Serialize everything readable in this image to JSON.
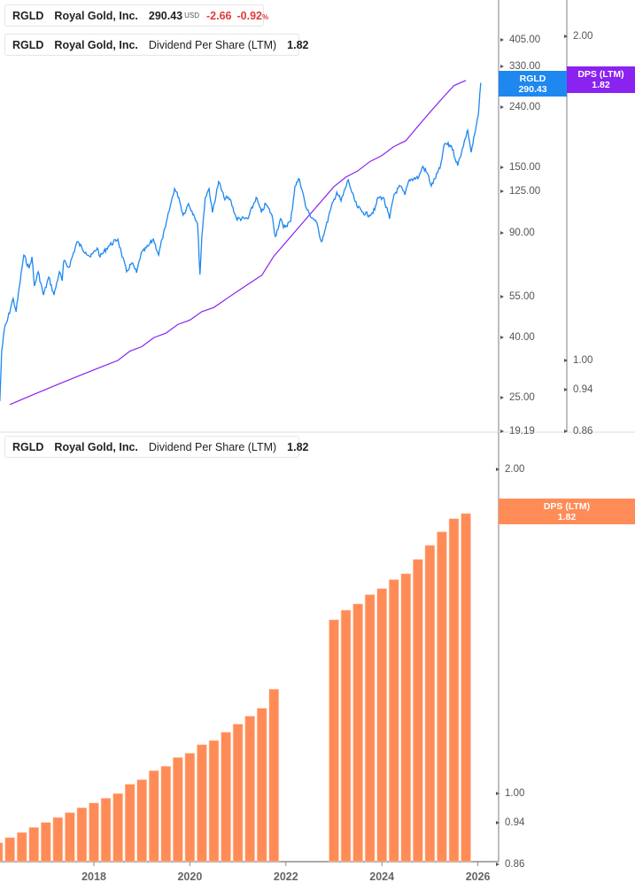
{
  "colors": {
    "price": "#1e88f0",
    "dps_line": "#8a22f0",
    "dps_bar": "#ff8c57",
    "axis": "#aaaaaa"
  },
  "legend_price": {
    "ticker": "RGLD",
    "company": "Royal Gold, Inc.",
    "price": "290.43",
    "currency": "USD",
    "change": "-2.66",
    "change_pct": "-0.92",
    "pct_sign": "%"
  },
  "legend_dps_top": {
    "ticker": "RGLD",
    "company": "Royal Gold, Inc.",
    "metric": "Dividend Per Share (LTM)",
    "value": "1.82"
  },
  "legend_dps_bottom": {
    "ticker": "RGLD",
    "company": "Royal Gold, Inc.",
    "metric": "Dividend Per Share (LTM)",
    "value": "1.82"
  },
  "tags": {
    "price": {
      "label": "RGLD",
      "value": "290.43"
    },
    "dps_top": {
      "label": "DPS (LTM)",
      "value": "1.82"
    },
    "dps_bottom": {
      "label": "DPS (LTM)",
      "value": "1.82"
    }
  },
  "chart_data": [
    {
      "type": "line",
      "scale": "log",
      "series": [
        {
          "axis": "price",
          "x": [
            2016.04,
            2016.08,
            2016.14,
            2016.19,
            2016.32,
            2016.38,
            2016.45,
            2016.54,
            2016.65,
            2016.71,
            2016.76,
            2016.84,
            2016.95,
            2017.06,
            2017.17,
            2017.28,
            2017.34,
            2017.37,
            2017.48,
            2017.65,
            2017.83,
            2017.93,
            2018.07,
            2018.13,
            2018.3,
            2018.5,
            2018.57,
            2018.68,
            2018.79,
            2018.89,
            2018.98,
            2019.13,
            2019.24,
            2019.35,
            2019.42,
            2019.49,
            2019.59,
            2019.68,
            2019.77,
            2019.86,
            2019.97,
            2020.08,
            2020.16,
            2020.21,
            2020.25,
            2020.32,
            2020.4,
            2020.47,
            2020.6,
            2020.71,
            2020.84,
            2020.97,
            2021.15,
            2021.21,
            2021.38,
            2021.49,
            2021.58,
            2021.71,
            2021.78,
            2021.89,
            2021.95,
            2022.1,
            2022.19,
            2022.28,
            2022.35,
            2022.41,
            2022.5,
            2022.63,
            2022.74,
            2022.83,
            2022.93,
            2023.06,
            2023.15,
            2023.3,
            2023.37,
            2023.48,
            2023.61,
            2023.74,
            2023.85,
            2023.92,
            2024.03,
            2024.16,
            2024.25,
            2024.38,
            2024.48,
            2024.57,
            2024.77,
            2024.85,
            2024.96,
            2025.03,
            2025.21,
            2025.31,
            2025.45,
            2025.58,
            2025.68,
            2025.79,
            2025.86,
            2025.95,
            2026.01,
            2026.06
          ],
          "y": [
            24.3,
            35.8,
            43.1,
            45.2,
            54.1,
            48.8,
            59.6,
            75.9,
            68.4,
            74.8,
            59.6,
            66.6,
            55.6,
            63.9,
            55.6,
            66.6,
            62.1,
            72.3,
            68.9,
            84.2,
            77.5,
            74.8,
            80.2,
            74.8,
            81.3,
            85.9,
            77.5,
            66.6,
            71.3,
            66.1,
            76.4,
            81.3,
            85.9,
            75.9,
            85.9,
            94.0,
            110.9,
            127.3,
            118.8,
            103.5,
            113.2,
            104.2,
            96.6,
            65.2,
            87.7,
            118.8,
            127.3,
            105.7,
            134.5,
            118.8,
            117.2,
            100.7,
            100.7,
            100.7,
            118.8,
            105.7,
            113.2,
            103.5,
            87.7,
            100.7,
            94.0,
            98.6,
            129.9,
            137.3,
            123.8,
            110.9,
            103.5,
            98.6,
            84.2,
            94.0,
            107.9,
            123.8,
            115.6,
            136.4,
            123.8,
            110.9,
            105.7,
            103.5,
            107.9,
            118.8,
            118.8,
            100.7,
            121.3,
            129.9,
            121.3,
            136.4,
            139.2,
            151.3,
            142.1,
            129.9,
            149.2,
            181.0,
            177.3,
            152.3,
            174.8,
            200.7,
            168.9,
            200.7,
            225.6,
            290.43
          ]
        },
        {
          "axis": "dps",
          "source": "dividend_per_share_ltm"
        }
      ],
      "price_ticks": [
        "405.00",
        "330.00",
        "240.00",
        "150.00",
        "125.00",
        "90.00",
        "55.00",
        "40.00",
        "25.00",
        "19.19"
      ],
      "dps_ticks": [
        "2.00",
        "1.00",
        "0.94",
        "0.86"
      ],
      "ylim_price": [
        19.19,
        420
      ],
      "ylim_dps": [
        0.86,
        2.1
      ],
      "grid": false
    },
    {
      "type": "bar",
      "scale": "log",
      "name": "Dividend Per Share (LTM)",
      "x": [
        2016.0,
        2016.25,
        2016.5,
        2016.75,
        2017.0,
        2017.25,
        2017.5,
        2017.75,
        2018.0,
        2018.25,
        2018.5,
        2018.75,
        2019.0,
        2019.25,
        2019.5,
        2019.75,
        2020.0,
        2020.25,
        2020.5,
        2020.75,
        2021.0,
        2021.25,
        2021.5,
        2021.75,
        2023.0,
        2023.25,
        2023.5,
        2023.75,
        2024.0,
        2024.25,
        2024.5,
        2024.75,
        2025.0,
        2025.25,
        2025.5,
        2025.75
      ],
      "values": [
        0.9,
        0.91,
        0.92,
        0.93,
        0.94,
        0.95,
        0.96,
        0.97,
        0.98,
        0.99,
        1.0,
        1.02,
        1.03,
        1.05,
        1.06,
        1.08,
        1.09,
        1.11,
        1.12,
        1.14,
        1.16,
        1.18,
        1.2,
        1.25,
        1.45,
        1.48,
        1.5,
        1.53,
        1.55,
        1.58,
        1.6,
        1.65,
        1.7,
        1.75,
        1.8,
        1.82
      ],
      "y_ticks": [
        "2.00",
        "1.00",
        "0.94",
        "0.86"
      ],
      "x_ticks": [
        "2018",
        "2020",
        "2022",
        "2024",
        "2026"
      ],
      "ylim": [
        0.86,
        2.1
      ],
      "grid": false
    }
  ]
}
